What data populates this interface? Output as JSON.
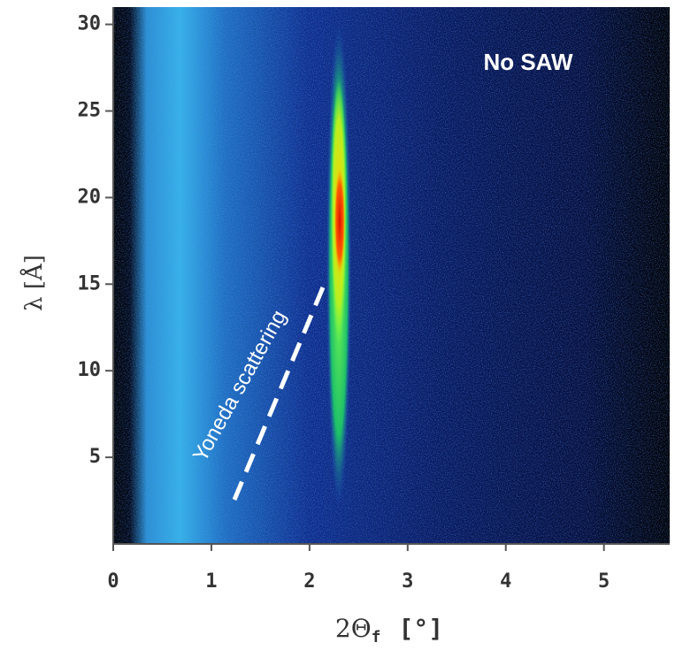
{
  "chart_data": {
    "type": "heatmap",
    "xlabel": {
      "main": "2Θ",
      "sub": "f",
      "unit": "[°]"
    },
    "ylabel": "λ [Å]",
    "xlim": [
      0,
      5.67
    ],
    "xticks": [
      0,
      1,
      2,
      3,
      4,
      5
    ],
    "ylim": [
      0,
      31
    ],
    "yticks": [
      5,
      10,
      15,
      20,
      25,
      30
    ],
    "annotations": [
      "No SAW",
      "Yoneda scattering"
    ]
  }
}
